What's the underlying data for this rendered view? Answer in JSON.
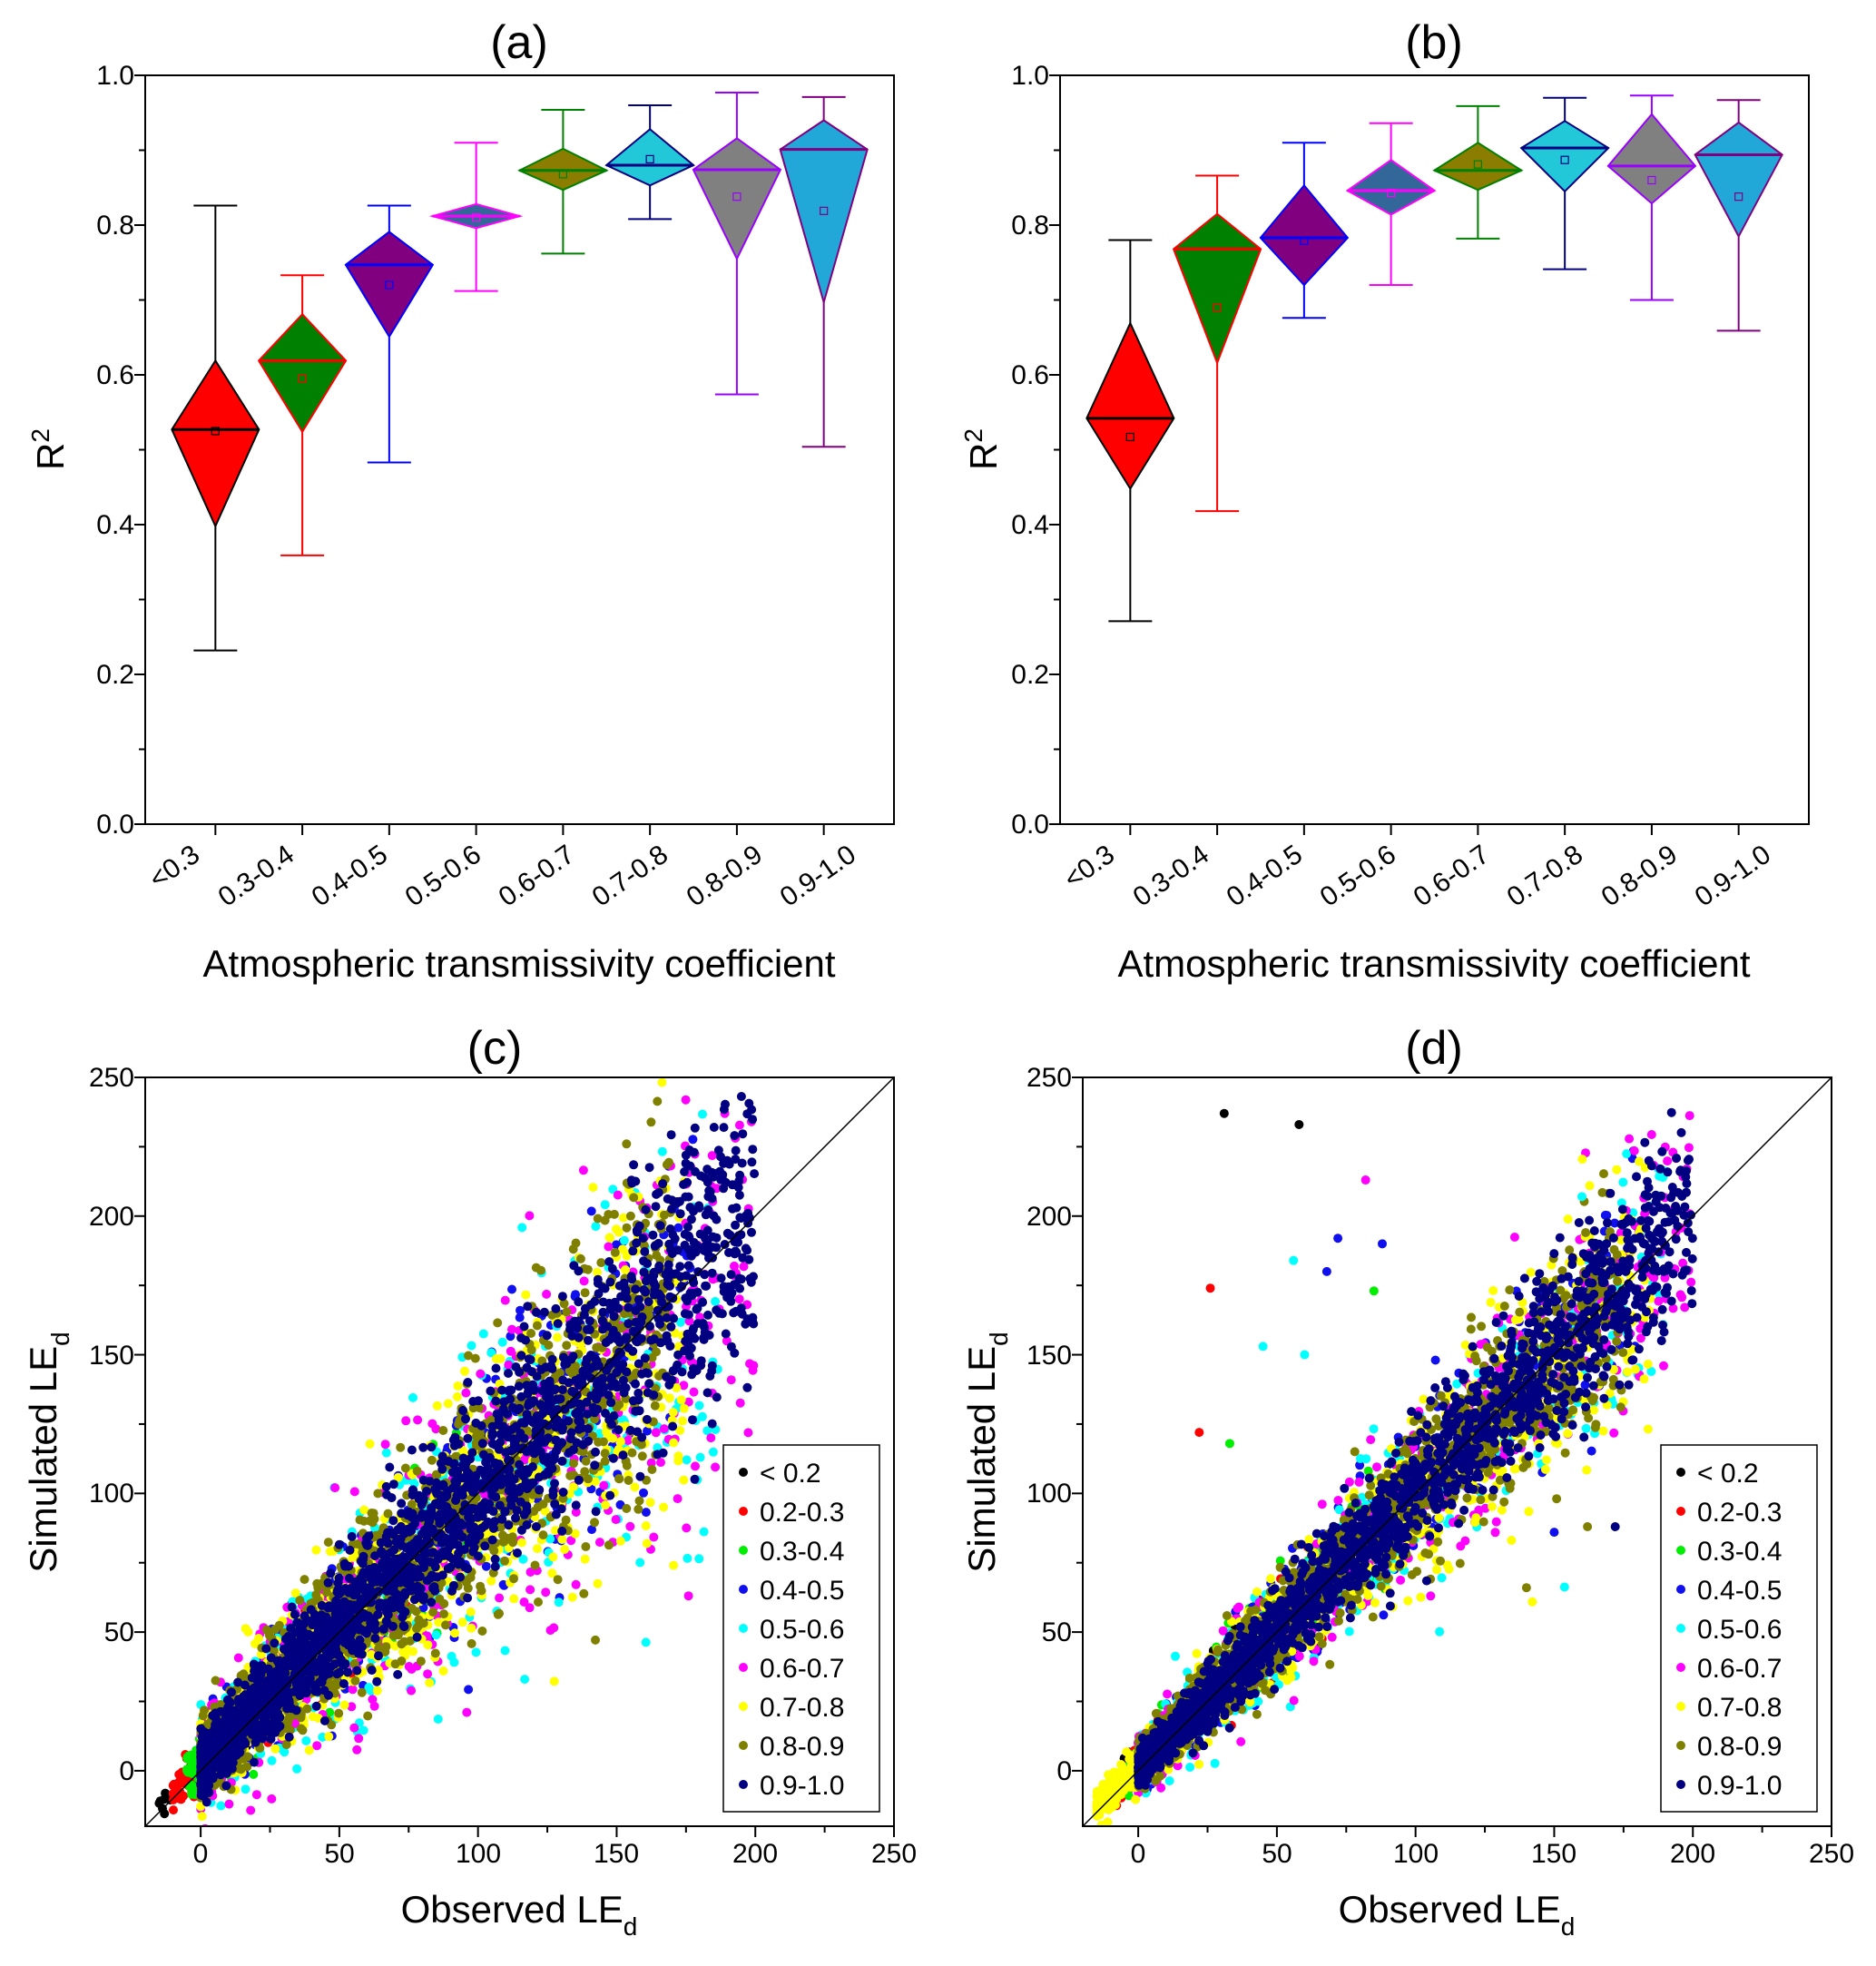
{
  "figure": {
    "colors": {
      "lt0_2": "#000000",
      "c0_2_0_3": "#ff0000",
      "c0_3_0_4": "#00ee00",
      "c0_4_0_5": "#1010ee",
      "c0_5_0_6": "#00ffff",
      "c0_6_0_7": "#ff00ff",
      "c0_7_0_8": "#ffff00",
      "c0_8_0_9": "#808000",
      "c0_9_1_0": "#000080"
    }
  },
  "chart_data": [
    {
      "id": "a",
      "type": "box-diamond",
      "title": "(a)",
      "xlabel": "Atmospheric transmissivity coefficient",
      "ylabel": "R",
      "ylabel_sup": "2",
      "ylim": [
        0.0,
        1.0
      ],
      "yticks": [
        "0.0",
        "0.2",
        "0.4",
        "0.6",
        "0.8",
        "1.0"
      ],
      "categories": [
        "<0.3",
        "0.3-0.4",
        "0.4-0.5",
        "0.5-0.6",
        "0.6-0.7",
        "0.7-0.8",
        "0.8-0.9",
        "0.9-1.0"
      ],
      "boxes": [
        {
          "min": 0.232,
          "q1": 0.398,
          "median": 0.527,
          "mean": 0.525,
          "q3": 0.619,
          "max": 0.826,
          "fill": "#ff0000",
          "edge": "#000000",
          "whisker": "#000000",
          "median_color": "#000000"
        },
        {
          "min": 0.359,
          "q1": 0.524,
          "median": 0.619,
          "mean": 0.595,
          "q3": 0.681,
          "max": 0.733,
          "fill": "#008000",
          "edge": "#ff0000",
          "whisker": "#ff0000",
          "median_color": "#ff0000"
        },
        {
          "min": 0.483,
          "q1": 0.651,
          "median": 0.747,
          "mean": 0.72,
          "q3": 0.791,
          "max": 0.826,
          "fill": "#800080",
          "edge": "#0000ff",
          "whisker": "#0000ff",
          "median_color": "#0000ff"
        },
        {
          "min": 0.712,
          "q1": 0.796,
          "median": 0.812,
          "mean": 0.81,
          "q3": 0.828,
          "max": 0.91,
          "fill": "#336699",
          "edge": "#ff00ff",
          "whisker": "#ff00ff",
          "median_color": "#ff00ff"
        },
        {
          "min": 0.762,
          "q1": 0.847,
          "median": 0.873,
          "mean": 0.868,
          "q3": 0.902,
          "max": 0.954,
          "fill": "#8b7d00",
          "edge": "#008000",
          "whisker": "#008000",
          "median_color": "#008000"
        },
        {
          "min": 0.808,
          "q1": 0.853,
          "median": 0.88,
          "mean": 0.888,
          "q3": 0.928,
          "max": 0.96,
          "fill": "#22c8d8",
          "edge": "#000080",
          "whisker": "#000080",
          "median_color": "#000080"
        },
        {
          "min": 0.574,
          "q1": 0.755,
          "median": 0.874,
          "mean": 0.838,
          "q3": 0.916,
          "max": 0.977,
          "fill": "#808080",
          "edge": "#9a00ff",
          "whisker": "#9a00ff",
          "median_color": "#9a00ff"
        },
        {
          "min": 0.504,
          "q1": 0.697,
          "median": 0.901,
          "mean": 0.819,
          "q3": 0.94,
          "max": 0.971,
          "fill": "#22a8d8",
          "edge": "#800080",
          "whisker": "#800080",
          "median_color": "#800080"
        }
      ]
    },
    {
      "id": "b",
      "type": "box-diamond",
      "title": "(b)",
      "xlabel": "Atmospheric transmissivity coefficient",
      "ylabel": "R",
      "ylabel_sup": "2",
      "ylim": [
        0.0,
        1.0
      ],
      "yticks": [
        "0.0",
        "0.2",
        "0.4",
        "0.6",
        "0.8",
        "1.0"
      ],
      "categories": [
        "<0.3",
        "0.3-0.4",
        "0.4-0.5",
        "0.5-0.6",
        "0.6-0.7",
        "0.7-0.8",
        "0.8-0.9",
        "0.9-1.0"
      ],
      "boxes": [
        {
          "min": 0.271,
          "q1": 0.448,
          "median": 0.542,
          "mean": 0.517,
          "q3": 0.669,
          "max": 0.78,
          "fill": "#ff0000",
          "edge": "#000000",
          "whisker": "#000000",
          "median_color": "#000000"
        },
        {
          "min": 0.418,
          "q1": 0.616,
          "median": 0.768,
          "mean": 0.69,
          "q3": 0.815,
          "max": 0.866,
          "fill": "#008000",
          "edge": "#ff0000",
          "whisker": "#ff0000",
          "median_color": "#ff0000"
        },
        {
          "min": 0.676,
          "q1": 0.72,
          "median": 0.783,
          "mean": 0.779,
          "q3": 0.853,
          "max": 0.91,
          "fill": "#800080",
          "edge": "#0000ff",
          "whisker": "#0000ff",
          "median_color": "#0000ff"
        },
        {
          "min": 0.72,
          "q1": 0.814,
          "median": 0.846,
          "mean": 0.843,
          "q3": 0.887,
          "max": 0.936,
          "fill": "#336699",
          "edge": "#ff00ff",
          "whisker": "#ff00ff",
          "median_color": "#ff00ff"
        },
        {
          "min": 0.782,
          "q1": 0.847,
          "median": 0.873,
          "mean": 0.881,
          "q3": 0.91,
          "max": 0.959,
          "fill": "#8b7d00",
          "edge": "#008000",
          "whisker": "#008000",
          "median_color": "#008000"
        },
        {
          "min": 0.741,
          "q1": 0.845,
          "median": 0.903,
          "mean": 0.887,
          "q3": 0.939,
          "max": 0.97,
          "fill": "#22c8d8",
          "edge": "#000080",
          "whisker": "#000080",
          "median_color": "#000080"
        },
        {
          "min": 0.7,
          "q1": 0.829,
          "median": 0.879,
          "mean": 0.86,
          "q3": 0.948,
          "max": 0.973,
          "fill": "#808080",
          "edge": "#9a00ff",
          "whisker": "#9a00ff",
          "median_color": "#9a00ff"
        },
        {
          "min": 0.659,
          "q1": 0.785,
          "median": 0.894,
          "mean": 0.838,
          "q3": 0.937,
          "max": 0.967,
          "fill": "#22a8d8",
          "edge": "#800080",
          "whisker": "#800080",
          "median_color": "#800080"
        }
      ]
    },
    {
      "id": "c",
      "type": "scatter",
      "title": "(c)",
      "xlabel": "Observed LE",
      "xlabel_sub": "d",
      "ylabel": "Simulated LE",
      "ylabel_sub": "d",
      "xlim": [
        -20,
        250
      ],
      "ylim": [
        -20,
        250
      ],
      "xticks": [
        "0",
        "50",
        "100",
        "150",
        "200",
        "250"
      ],
      "yticks": [
        "0",
        "50",
        "100",
        "150",
        "200",
        "250"
      ],
      "one_to_one_line": true,
      "legend": {
        "position": "bottom-right",
        "entries": [
          "< 0.2",
          "0.2-0.3",
          "0.3-0.4",
          "0.4-0.5",
          "0.5-0.6",
          "0.6-0.7",
          "0.7-0.8",
          "0.8-0.9",
          "0.9-1.0"
        ]
      },
      "series": [
        {
          "name": "< 0.2",
          "color": "#000000",
          "n": 60,
          "x_range": [
            -15,
            60
          ],
          "slope": 0.95,
          "intercept": 0,
          "spread": 9
        },
        {
          "name": "0.2-0.3",
          "color": "#ff0000",
          "n": 180,
          "x_range": [
            -10,
            75
          ],
          "slope": 0.95,
          "intercept": 1,
          "spread": 12
        },
        {
          "name": "0.3-0.4",
          "color": "#00ee00",
          "n": 300,
          "x_range": [
            -5,
            95
          ],
          "slope": 0.95,
          "intercept": 2,
          "spread": 15
        },
        {
          "name": "0.4-0.5",
          "color": "#1010ee",
          "n": 420,
          "x_range": [
            0,
            180
          ],
          "slope": 0.95,
          "intercept": 3,
          "spread": 20
        },
        {
          "name": "0.5-0.6",
          "color": "#00ffff",
          "n": 550,
          "x_range": [
            0,
            190
          ],
          "slope": 0.92,
          "intercept": 3,
          "spread": 22
        },
        {
          "name": "0.6-0.7",
          "color": "#ff00ff",
          "n": 650,
          "x_range": [
            0,
            200
          ],
          "slope": 0.93,
          "intercept": 3,
          "spread": 22
        },
        {
          "name": "0.7-0.8",
          "color": "#ffff00",
          "n": 900,
          "x_range": [
            0,
            175
          ],
          "slope": 0.95,
          "intercept": 3,
          "spread": 20
        },
        {
          "name": "0.8-0.9",
          "color": "#808000",
          "n": 1500,
          "x_range": [
            0,
            170
          ],
          "slope": 0.97,
          "intercept": 3,
          "spread": 17
        },
        {
          "name": "0.9-1.0",
          "color": "#000080",
          "n": 2200,
          "x_range": [
            0,
            200
          ],
          "slope": 1.0,
          "intercept": 2,
          "spread": 13
        }
      ]
    },
    {
      "id": "d",
      "type": "scatter",
      "title": "(d)",
      "xlabel": "Observed LE",
      "xlabel_sub": "d",
      "ylabel": "Simulated LE",
      "ylabel_sub": "d",
      "xlim": [
        -20,
        250
      ],
      "ylim": [
        -20,
        250
      ],
      "xticks": [
        "0",
        "50",
        "100",
        "150",
        "200",
        "250"
      ],
      "yticks": [
        "0",
        "50",
        "100",
        "150",
        "200",
        "250"
      ],
      "one_to_one_line": true,
      "legend": {
        "position": "bottom-right",
        "entries": [
          "< 0.2",
          "0.2-0.3",
          "0.3-0.4",
          "0.4-0.5",
          "0.5-0.6",
          "0.6-0.7",
          "0.7-0.8",
          "0.8-0.9",
          "0.9-1.0"
        ]
      },
      "series": [
        {
          "name": "< 0.2",
          "color": "#000000",
          "n": 60,
          "x_range": [
            -12,
            60
          ],
          "slope": 1.05,
          "intercept": 2,
          "spread": 11
        },
        {
          "name": "0.2-0.3",
          "color": "#ff0000",
          "n": 170,
          "x_range": [
            -8,
            70
          ],
          "slope": 1.0,
          "intercept": 2,
          "spread": 11
        },
        {
          "name": "0.3-0.4",
          "color": "#00ee00",
          "n": 280,
          "x_range": [
            -5,
            95
          ],
          "slope": 1.0,
          "intercept": 2,
          "spread": 11
        },
        {
          "name": "0.4-0.5",
          "color": "#1010ee",
          "n": 380,
          "x_range": [
            0,
            180
          ],
          "slope": 0.98,
          "intercept": 2,
          "spread": 12
        },
        {
          "name": "0.5-0.6",
          "color": "#00ffff",
          "n": 500,
          "x_range": [
            0,
            190
          ],
          "slope": 0.95,
          "intercept": 2,
          "spread": 14
        },
        {
          "name": "0.6-0.7",
          "color": "#ff00ff",
          "n": 600,
          "x_range": [
            0,
            200
          ],
          "slope": 0.97,
          "intercept": 2,
          "spread": 13
        },
        {
          "name": "0.7-0.8",
          "color": "#ffff00",
          "n": 850,
          "x_range": [
            -15,
            185
          ],
          "slope": 0.97,
          "intercept": 2,
          "spread": 12
        },
        {
          "name": "0.8-0.9",
          "color": "#808000",
          "n": 1400,
          "x_range": [
            0,
            175
          ],
          "slope": 0.98,
          "intercept": 2,
          "spread": 11
        },
        {
          "name": "0.9-1.0",
          "color": "#000080",
          "n": 2000,
          "x_range": [
            0,
            200
          ],
          "slope": 1.0,
          "intercept": 1,
          "spread": 9
        }
      ],
      "outliers": [
        {
          "x": 31,
          "y": 237,
          "series": "< 0.2"
        },
        {
          "x": 58,
          "y": 233,
          "series": "< 0.2"
        },
        {
          "x": 82,
          "y": 213,
          "series": "0.6-0.7"
        },
        {
          "x": 72,
          "y": 192,
          "series": "0.4-0.5"
        },
        {
          "x": 88,
          "y": 190,
          "series": "0.4-0.5"
        },
        {
          "x": 56,
          "y": 184,
          "series": "0.5-0.6"
        },
        {
          "x": 68,
          "y": 180,
          "series": "0.4-0.5"
        },
        {
          "x": 26,
          "y": 174,
          "series": "0.2-0.3"
        },
        {
          "x": 85,
          "y": 173,
          "series": "0.3-0.4"
        },
        {
          "x": 60,
          "y": 150,
          "series": "0.5-0.6"
        },
        {
          "x": 45,
          "y": 153,
          "series": "0.5-0.6"
        },
        {
          "x": 22,
          "y": 122,
          "series": "0.2-0.3"
        },
        {
          "x": 33,
          "y": 118,
          "series": "0.3-0.4"
        },
        {
          "x": 160,
          "y": 207,
          "series": "0.5-0.6"
        },
        {
          "x": 172,
          "y": 88,
          "series": "0.9-1.0"
        },
        {
          "x": 150,
          "y": 86,
          "series": "0.4-0.5"
        },
        {
          "x": 162,
          "y": 88,
          "series": "0.8-0.9"
        },
        {
          "x": 140,
          "y": 66,
          "series": "0.8-0.9"
        }
      ]
    }
  ]
}
